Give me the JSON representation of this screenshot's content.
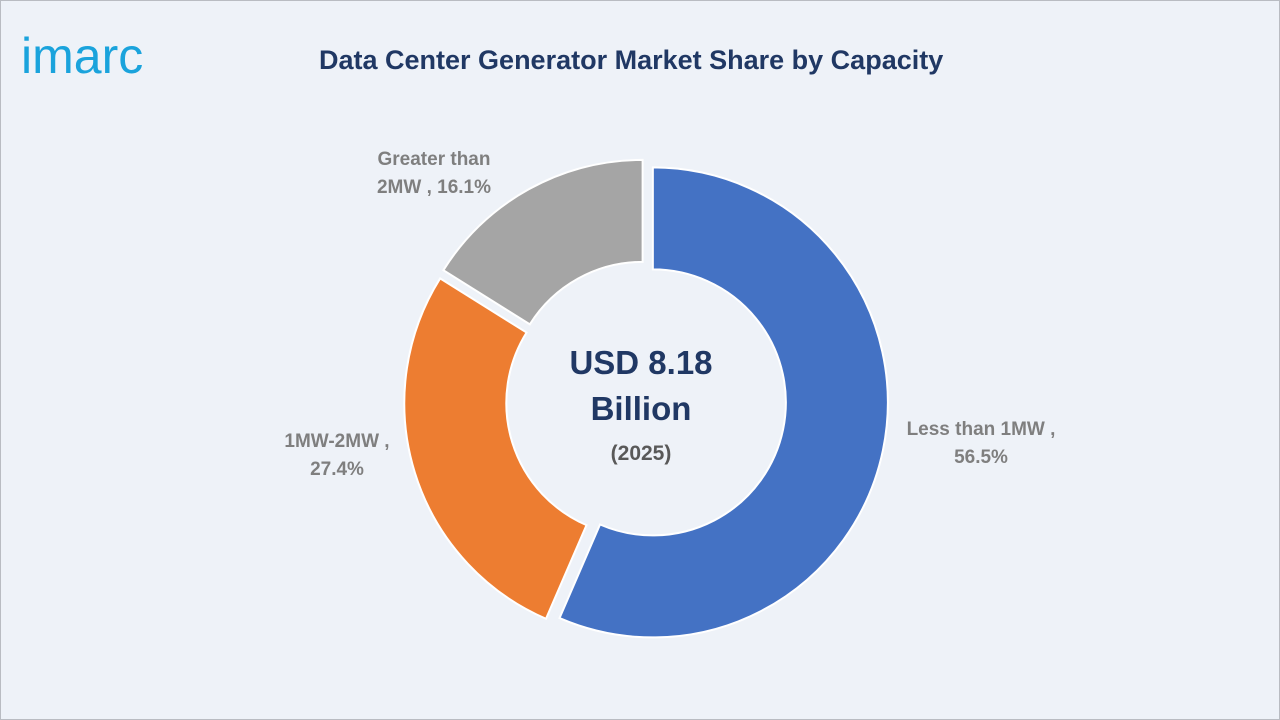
{
  "header": {
    "logo_text": "imarc",
    "title": "Data Center Generator Market Share by Capacity"
  },
  "chart_data": {
    "type": "pie",
    "title": "Data Center Generator Market Share by Capacity",
    "subtype": "donut",
    "center_label": {
      "line1": "USD 8.18",
      "line2": "Billion",
      "line3": "(2025)"
    },
    "slices": [
      {
        "label": "Less than 1MW",
        "value": 56.5,
        "text_line1": "Less than 1MW ,",
        "text_line2": "56.5%",
        "color": "#4472c4"
      },
      {
        "label": "1MW-2MW",
        "value": 27.4,
        "text_line1": "1MW-2MW ,",
        "text_line2": "27.4%",
        "color": "#ed7d31"
      },
      {
        "label": "Greater than 2MW",
        "value": 16.1,
        "text_line1": "Greater than",
        "text_line2": "2MW , 16.1%",
        "color": "#a5a5a5"
      }
    ],
    "legend": "none",
    "data_labels": "outside"
  },
  "colors": {
    "logo": "#1aa3dc",
    "title": "#203864",
    "background": "#eef2f8"
  }
}
